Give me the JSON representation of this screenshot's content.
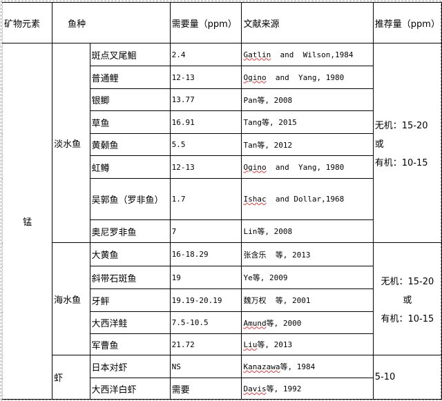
{
  "header": {
    "element": "矿物元素",
    "species": "鱼种",
    "requirement": "需要量（ppm）",
    "source": "文献来源",
    "recommended": "推荐量（ppm）"
  },
  "element": "锰",
  "groups": [
    {
      "name": "淡水鱼",
      "recommended": [
        "无机：15-20",
        "或",
        "有机：10-15"
      ],
      "rows": [
        {
          "species": "斑点叉尾鮰",
          "req": "2.4",
          "author": "Gatlin",
          "rest": "  and  Wilson,1984"
        },
        {
          "species": "普通鲤",
          "req": "12-13",
          "author": "Ogino",
          "rest": "  and  Yang, 1980"
        },
        {
          "species": "银鲫",
          "req": "13.77",
          "author": "Pan",
          "rest": "等, 2008"
        },
        {
          "species": "草鱼",
          "req": "16.91",
          "author": "Tang",
          "rest": "等, 2015"
        },
        {
          "species": "黄颡鱼",
          "req": "5.5",
          "author": "Tan",
          "rest": "等, 2012"
        },
        {
          "species": "虹鳟",
          "req": "12-13",
          "author": "Ogino",
          "rest": "  and  Yang, 1980"
        },
        {
          "species": "吴郭鱼（罗非鱼）",
          "req": "1.7",
          "author": "Ishac",
          "rest": "  and Dollar,1968"
        },
        {
          "species": "奥尼罗非鱼",
          "req": "7",
          "author": "Lin",
          "rest": "等, 2008"
        }
      ]
    },
    {
      "name": "海水鱼",
      "recommended": [
        "无机：15-20",
        "或",
        "有机：10-15"
      ],
      "rows": [
        {
          "species": "大黄鱼",
          "req": "16-18.29",
          "author": "张含乐",
          "rest": "  等, 2013"
        },
        {
          "species": "斜带石斑鱼",
          "req": "19",
          "author": "Ye",
          "rest": "等, 2009"
        },
        {
          "species": "牙鲆",
          "req": "19.19-20.19",
          "author": "魏万权",
          "rest": "  等, 2001"
        },
        {
          "species": "大西洋鲑",
          "req": "7.5-10.5",
          "author": "Amund",
          "rest": "等, 2000"
        },
        {
          "species": "军曹鱼",
          "req": "21.72",
          "author": "Liu",
          "rest": "等, 2013"
        }
      ]
    },
    {
      "name": "虾",
      "recommended": [
        "5-10"
      ],
      "rows": [
        {
          "species": "日本对虾",
          "req": "NS",
          "author": "Kanazawa",
          "rest": "等, 1984"
        },
        {
          "species": "大西洋白虾",
          "req": "需要",
          "author": "Davis",
          "rest": "等, 1992"
        }
      ]
    }
  ]
}
